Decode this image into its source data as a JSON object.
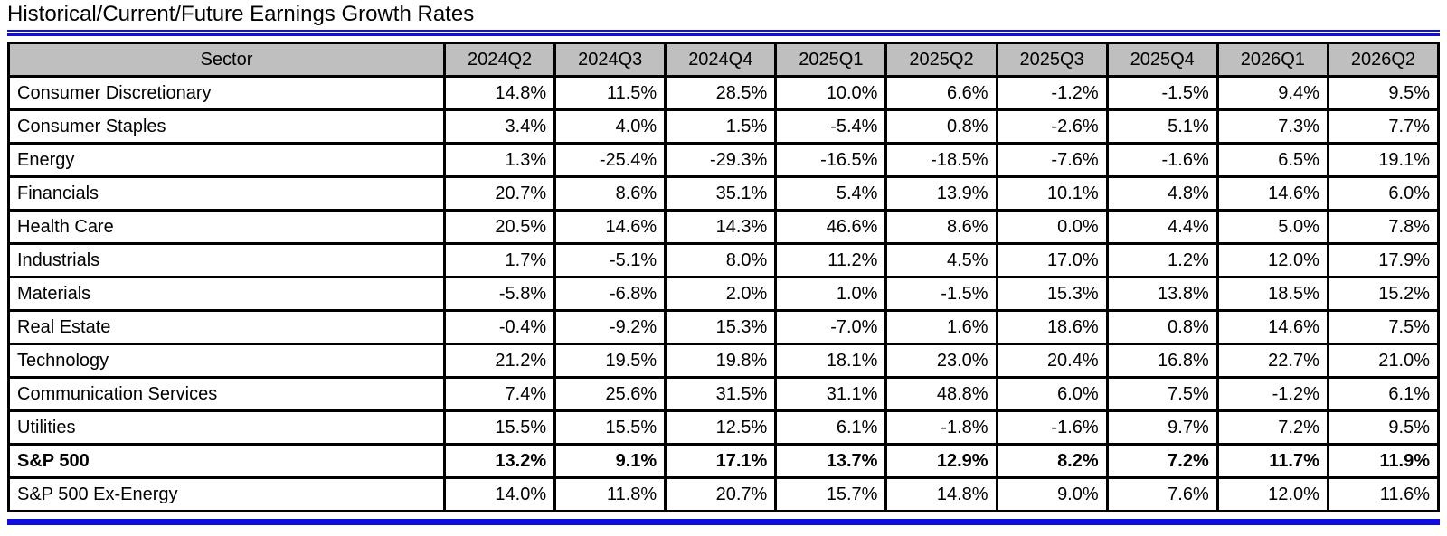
{
  "page": {
    "title": "Historical/Current/Future Earnings Growth Rates"
  },
  "colors": {
    "accent_blue": "#0e0edf",
    "header_gray": "#bfbfbf",
    "grid_black": "#000000"
  },
  "chart_data": {
    "type": "table",
    "title": "Historical/Current/Future Earnings Growth Rates",
    "sector_header": "Sector",
    "categories": [
      "2024Q2",
      "2024Q3",
      "2024Q4",
      "2025Q1",
      "2025Q2",
      "2025Q3",
      "2025Q4",
      "2026Q1",
      "2026Q2"
    ],
    "rows": [
      {
        "sector": "Consumer Discretionary",
        "bold": false,
        "values": [
          "14.8%",
          "11.5%",
          "28.5%",
          "10.0%",
          "6.6%",
          "-1.2%",
          "-1.5%",
          "9.4%",
          "9.5%"
        ]
      },
      {
        "sector": "Consumer Staples",
        "bold": false,
        "values": [
          "3.4%",
          "4.0%",
          "1.5%",
          "-5.4%",
          "0.8%",
          "-2.6%",
          "5.1%",
          "7.3%",
          "7.7%"
        ]
      },
      {
        "sector": "Energy",
        "bold": false,
        "values": [
          "1.3%",
          "-25.4%",
          "-29.3%",
          "-16.5%",
          "-18.5%",
          "-7.6%",
          "-1.6%",
          "6.5%",
          "19.1%"
        ]
      },
      {
        "sector": "Financials",
        "bold": false,
        "values": [
          "20.7%",
          "8.6%",
          "35.1%",
          "5.4%",
          "13.9%",
          "10.1%",
          "4.8%",
          "14.6%",
          "6.0%"
        ]
      },
      {
        "sector": "Health Care",
        "bold": false,
        "values": [
          "20.5%",
          "14.6%",
          "14.3%",
          "46.6%",
          "8.6%",
          "0.0%",
          "4.4%",
          "5.0%",
          "7.8%"
        ]
      },
      {
        "sector": "Industrials",
        "bold": false,
        "values": [
          "1.7%",
          "-5.1%",
          "8.0%",
          "11.2%",
          "4.5%",
          "17.0%",
          "1.2%",
          "12.0%",
          "17.9%"
        ]
      },
      {
        "sector": "Materials",
        "bold": false,
        "values": [
          "-5.8%",
          "-6.8%",
          "2.0%",
          "1.0%",
          "-1.5%",
          "15.3%",
          "13.8%",
          "18.5%",
          "15.2%"
        ]
      },
      {
        "sector": "Real Estate",
        "bold": false,
        "values": [
          "-0.4%",
          "-9.2%",
          "15.3%",
          "-7.0%",
          "1.6%",
          "18.6%",
          "0.8%",
          "14.6%",
          "7.5%"
        ]
      },
      {
        "sector": "Technology",
        "bold": false,
        "values": [
          "21.2%",
          "19.5%",
          "19.8%",
          "18.1%",
          "23.0%",
          "20.4%",
          "16.8%",
          "22.7%",
          "21.0%"
        ]
      },
      {
        "sector": "Communication Services",
        "bold": false,
        "values": [
          "7.4%",
          "25.6%",
          "31.5%",
          "31.1%",
          "48.8%",
          "6.0%",
          "7.5%",
          "-1.2%",
          "6.1%"
        ]
      },
      {
        "sector": "Utilities",
        "bold": false,
        "values": [
          "15.5%",
          "15.5%",
          "12.5%",
          "6.1%",
          "-1.8%",
          "-1.6%",
          "9.7%",
          "7.2%",
          "9.5%"
        ]
      },
      {
        "sector": "S&P 500",
        "bold": true,
        "values": [
          "13.2%",
          "9.1%",
          "17.1%",
          "13.7%",
          "12.9%",
          "8.2%",
          "7.2%",
          "11.7%",
          "11.9%"
        ]
      },
      {
        "sector": "S&P 500 Ex-Energy",
        "bold": false,
        "values": [
          "14.0%",
          "11.8%",
          "20.7%",
          "15.7%",
          "14.8%",
          "9.0%",
          "7.6%",
          "12.0%",
          "11.6%"
        ]
      }
    ]
  }
}
